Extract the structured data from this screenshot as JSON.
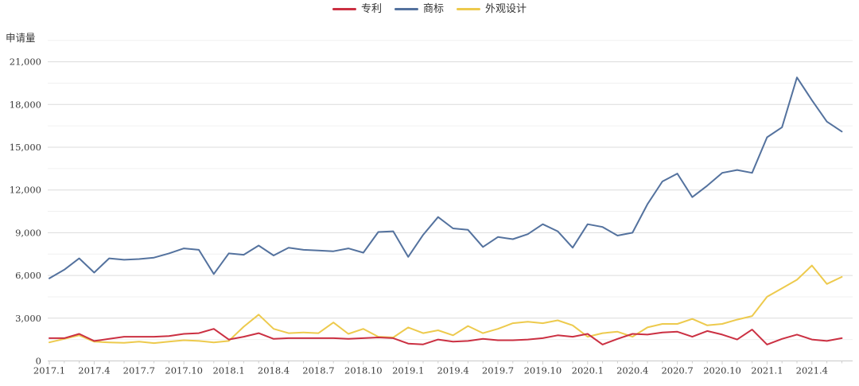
{
  "page": {
    "background": "#ffffff"
  },
  "y_axis": {
    "title": "申请量"
  },
  "legend": {
    "items": [
      {
        "label": "专利",
        "color": "#cb3042"
      },
      {
        "label": "商标",
        "color": "#54729e"
      },
      {
        "label": "外观设计",
        "color": "#edca4d"
      }
    ]
  },
  "chart_data": {
    "type": "line",
    "title": "",
    "xlabel": "",
    "ylabel": "申请量",
    "ylim": [
      0,
      22500
    ],
    "y_tick_step": 3000,
    "y_minor_step": 1500,
    "grid": true,
    "legend_position": "top-center",
    "x": [
      "2017.1",
      "2017.2",
      "2017.3",
      "2017.4",
      "2017.5",
      "2017.6",
      "2017.7",
      "2017.8",
      "2017.9",
      "2017.10",
      "2017.11",
      "2017.12",
      "2018.1",
      "2018.2",
      "2018.3",
      "2018.4",
      "2018.5",
      "2018.6",
      "2018.7",
      "2018.8",
      "2018.9",
      "2018.10",
      "2018.11",
      "2018.12",
      "2019.1",
      "2019.2",
      "2019.3",
      "2019.4",
      "2019.5",
      "2019.6",
      "2019.7",
      "2019.8",
      "2019.9",
      "2019.10",
      "2019.11",
      "2019.12",
      "2020.1",
      "2020.2",
      "2020.3",
      "2020.4",
      "2020.5",
      "2020.6",
      "2020.7",
      "2020.8",
      "2020.9",
      "2020.10",
      "2020.11",
      "2020.12",
      "2021.1",
      "2021.2",
      "2021.3",
      "2021.4",
      "2021.5",
      "2021.6"
    ],
    "x_tick_labels": [
      "2017.1",
      "2017.4",
      "2017.7",
      "2017.10",
      "2018.1",
      "2018.4",
      "2018.7",
      "2018.10",
      "2019.1",
      "2019.4",
      "2019.7",
      "2019.10",
      "2020.1",
      "2020.4",
      "2020.7",
      "2020.10",
      "2021.1",
      "2021.4"
    ],
    "x_tick_month_indices": [
      0,
      3,
      6,
      9,
      12,
      15,
      18,
      21,
      24,
      27,
      30,
      33,
      36,
      39,
      42,
      45,
      48,
      51
    ],
    "series": [
      {
        "name": "专利",
        "color": "#cb3042",
        "values": [
          1600,
          1600,
          1900,
          1400,
          1550,
          1700,
          1700,
          1700,
          1750,
          1900,
          1950,
          2250,
          1500,
          1700,
          1950,
          1550,
          1600,
          1600,
          1600,
          1600,
          1550,
          1600,
          1650,
          1600,
          1220,
          1160,
          1500,
          1350,
          1400,
          1550,
          1450,
          1450,
          1500,
          1600,
          1800,
          1700,
          1900,
          1150,
          1550,
          1900,
          1850,
          2000,
          2050,
          1700,
          2100,
          1850,
          1500,
          2200,
          1150,
          1550,
          1850,
          1500,
          1400,
          1600
        ]
      },
      {
        "name": "商标",
        "color": "#54729e",
        "values": [
          5800,
          6400,
          7200,
          6200,
          7200,
          7100,
          7150,
          7250,
          7550,
          7900,
          7800,
          6100,
          7550,
          7450,
          8100,
          7400,
          7950,
          7800,
          7750,
          7700,
          7900,
          7600,
          9050,
          9100,
          7300,
          8850,
          10100,
          9300,
          9200,
          8000,
          8700,
          8550,
          8900,
          9600,
          9100,
          7950,
          9600,
          9400,
          8800,
          9000,
          11000,
          12600,
          13150,
          11500,
          12300,
          13200,
          13400,
          13200,
          15700,
          16400,
          19900,
          18300,
          16800,
          16100
        ]
      },
      {
        "name": "外观设计",
        "color": "#edca4d",
        "values": [
          1300,
          1550,
          1800,
          1350,
          1300,
          1270,
          1350,
          1250,
          1350,
          1450,
          1400,
          1300,
          1400,
          2400,
          3250,
          2250,
          1950,
          2000,
          1950,
          2700,
          1900,
          2250,
          1700,
          1650,
          2350,
          1950,
          2150,
          1800,
          2450,
          1950,
          2250,
          2650,
          2750,
          2650,
          2850,
          2500,
          1700,
          1950,
          2050,
          1700,
          2350,
          2600,
          2600,
          2950,
          2500,
          2600,
          2900,
          3150,
          4500,
          5100,
          5700,
          6700,
          5400,
          5900
        ]
      }
    ]
  }
}
